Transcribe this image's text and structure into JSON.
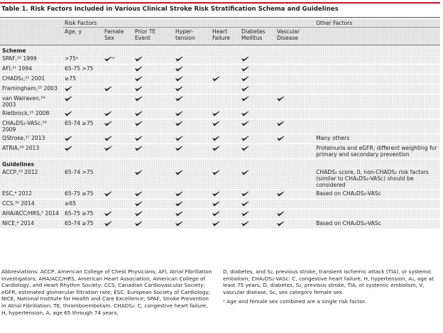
{
  "title": "Table 1. Risk Factors Included in Various Clinical Stroke Risk Stratification Schema and Guidelines",
  "header": {
    "risk_factors": "Risk Factors",
    "other_factors": "Other Factors",
    "columns": [
      "Age, y",
      "Female Sex",
      "Prior TE Event",
      "Hyper-tension",
      "Heart Failure",
      "Diabetes Mellitus",
      "Vascular Disease"
    ]
  },
  "sections": [
    {
      "label": "Scheme",
      "rows": [
        {
          "name": "SPAF,²⁰ 1999",
          "cells": [
            ">75ᵃ",
            {
              "check": true,
              "note": "ᵃ"
            },
            true,
            true,
            null,
            true,
            null
          ],
          "other": null
        },
        {
          "name": "AFI,²¹ 1994",
          "cells": [
            "65-75 >75",
            null,
            true,
            true,
            null,
            true,
            null
          ],
          "other": null
        },
        {
          "name": "CHADS₂,²² 2001",
          "cells": [
            "≥75",
            null,
            true,
            true,
            true,
            true,
            null
          ],
          "other": null
        },
        {
          "name": "Framingham,²³ 2003",
          "cells": [
            true,
            true,
            true,
            true,
            null,
            true,
            null
          ],
          "other": null
        },
        {
          "name": "van Walraven,²⁴ 2003",
          "cells": [
            true,
            null,
            true,
            true,
            null,
            true,
            true
          ],
          "other": null
        },
        {
          "name": "Rietbrock,²⁵ 2008",
          "cells": [
            true,
            true,
            true,
            true,
            true,
            true,
            null
          ],
          "other": null
        },
        {
          "name": "CHA₂DS₂-VASc,²⁶ 2009",
          "cells": [
            "65-74 ≥75",
            true,
            true,
            true,
            true,
            true,
            true
          ],
          "other": null
        },
        {
          "name": "QStroke,²⁷ 2013",
          "cells": [
            true,
            true,
            true,
            true,
            true,
            true,
            true
          ],
          "other": "Many others"
        },
        {
          "name": "ATRIA,²⁸ 2013",
          "cells": [
            true,
            true,
            true,
            true,
            true,
            true,
            null
          ],
          "other": "Proteinuria and eGFR; different weighting for primary and secondary prevention"
        }
      ]
    },
    {
      "label": "Guidelines",
      "rows": [
        {
          "name": "ACCP,²⁹ 2012",
          "cells": [
            "65-74 >75",
            null,
            true,
            true,
            true,
            true,
            null
          ],
          "other": "CHADS₂ score, 0, non-CHADS₂ risk factors (similar to CHA₂DS₂-VASc) should be considered"
        },
        {
          "name": "ESC,⁴ 2012",
          "cells": [
            "65-75 ≥75",
            true,
            true,
            true,
            true,
            true,
            true
          ],
          "other": "Based on CHA₂DS₂-VASc"
        },
        {
          "name": "CCS,³⁰ 2014",
          "cells": [
            "≥65",
            null,
            true,
            true,
            true,
            true,
            null
          ],
          "other": null
        },
        {
          "name": "AHA/ACC/HRS,⁵ 2014",
          "cells": [
            "65-75 ≥75",
            true,
            true,
            true,
            true,
            true,
            true
          ],
          "other": null
        },
        {
          "name": "NICE,⁴ 2014",
          "cells": [
            "65-74 ≥75",
            true,
            true,
            true,
            true,
            true,
            true
          ],
          "other": "Based on CHA₂DS₂-VASc"
        }
      ]
    }
  ],
  "footer": {
    "abbreviations": [
      "Abbreviations: ACCP, American College of Chest Physicians; AFI, Atrial Fibrillation Investigators; AHA/ACC/HRS, American Heart Association, American College of Cardiology, and Heart Rhythm Society; CCS, Canadian Cardiovascular Society; eGFR, estimated glomerular filtration rate; ESC, European Society of Cardiology; NICE, National Institute for Health and Care Excellence; SPAF, Stroke Prevention in Atrial Fibrillation; TE, thromboembolism. CHADS₂: C, congestive heart failure, H, hypertension, A, age 65 through 74 years,",
      "D, diabetes, and S₂, previous stroke, transient ischemic attack (TIA), or systemic embolism; CHA₂DS₂-VASc: C, congestive heart failure, H, hypertension, A₂, age at least 75 years, D, diabetes, S₂, previous stroke, TIA, or systemic embolism, V, vascular disease, Sc, sex category female sex."
    ],
    "footnote": "ᵃ Age and female sex combined are a single risk factor."
  }
}
